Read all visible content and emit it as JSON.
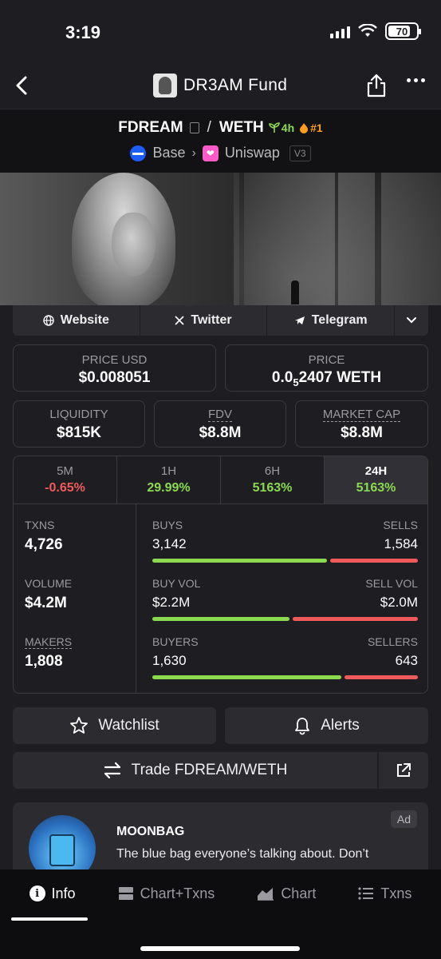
{
  "status": {
    "time": "3:19",
    "battery": "70"
  },
  "nav": {
    "title": "DR3AM Fund"
  },
  "pair": {
    "base_token": "FDREAM",
    "separator": "/",
    "quote_token": "WETH",
    "age": "4h",
    "rank": "#1",
    "chain": "Base",
    "dex": "Uniswap",
    "version": "V3"
  },
  "links": {
    "website": "Website",
    "twitter": "Twitter",
    "telegram": "Telegram"
  },
  "price": {
    "usd_label": "PRICE USD",
    "usd_value": "$0.008051",
    "native_label": "PRICE",
    "native_prefix": "0.0",
    "native_sub": "5",
    "native_rest": "2407 WETH"
  },
  "metrics": {
    "liquidity_label": "LIQUIDITY",
    "liquidity_value": "$815K",
    "fdv_label": "FDV",
    "fdv_value": "$8.8M",
    "mcap_label": "MARKET CAP",
    "mcap_value": "$8.8M"
  },
  "periods": [
    {
      "label": "5M",
      "value": "-0.65%"
    },
    {
      "label": "1H",
      "value": "29.99%"
    },
    {
      "label": "6H",
      "value": "5163%"
    },
    {
      "label": "24H",
      "value": "5163%"
    }
  ],
  "stats": {
    "txns_label": "TXNS",
    "txns_value": "4,726",
    "volume_label": "VOLUME",
    "volume_value": "$4.2M",
    "makers_label": "MAKERS",
    "makers_value": "1,808",
    "buys_label": "BUYS",
    "buys_value": "3,142",
    "sells_label": "SELLS",
    "sells_value": "1,584",
    "buy_vol_label": "BUY VOL",
    "buy_vol_value": "$2.2M",
    "sell_vol_label": "SELL VOL",
    "sell_vol_value": "$2.0M",
    "buyers_label": "BUYERS",
    "buyers_value": "1,630",
    "sellers_label": "SELLERS",
    "sellers_value": "643",
    "buy_share": 0.665,
    "buy_vol_share": 0.524,
    "buyer_share": 0.717
  },
  "actions": {
    "watchlist": "Watchlist",
    "alerts": "Alerts",
    "trade": "Trade FDREAM/WETH"
  },
  "ad": {
    "name": "MOONBAG",
    "text": "The blue bag everyone’s talking about. Don’t",
    "tag": "Ad"
  },
  "tabbar": {
    "info": "Info",
    "chart_txns": "Chart+Txns",
    "chart": "Chart",
    "txns": "Txns"
  },
  "colors": {
    "positive": "#8bd94f",
    "negative": "#f05a5a",
    "rank": "#ff9e1a",
    "base_chain": "#1d5cff",
    "uniswap": "#ff5ac8"
  }
}
